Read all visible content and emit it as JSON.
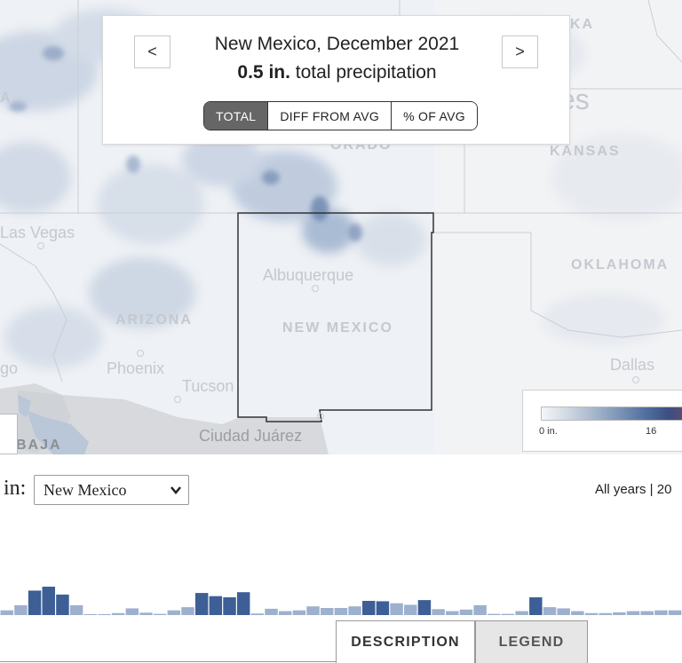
{
  "header": {
    "title": "New Mexico, December 2021",
    "total_value": "0.5 in.",
    "total_suffix": " total precipitation",
    "prev_label": "<",
    "next_label": ">",
    "toggle": [
      {
        "label": "TOTAL",
        "active": true
      },
      {
        "label": "DIFF FROM AVG",
        "active": false
      },
      {
        "label": "% OF AVG",
        "active": false
      }
    ]
  },
  "map": {
    "state_labels": [
      "KANSAS",
      "OKLAHOMA",
      "ARIZONA",
      "NEW MEXICO",
      "BAJA",
      "KA",
      "es",
      "ORADO"
    ],
    "city_labels": [
      "Las Vegas",
      "Albuquerque",
      "Phoenix",
      "Tucson",
      "Dallas",
      "Ciudad Juárez",
      "go",
      "A"
    ],
    "scale": {
      "min_label": "0 in.",
      "mid_label": "16"
    }
  },
  "controls": {
    "in_label": "in:",
    "state_select": "New Mexico",
    "years_label": "All years |  20"
  },
  "histogram": {
    "values": [
      0.12,
      0.25,
      0.62,
      0.72,
      0.52,
      0.25,
      0.02,
      0.02,
      0.05,
      0.17,
      0.06,
      0.03,
      0.12,
      0.2,
      0.56,
      0.48,
      0.45,
      0.58,
      0.04,
      0.16,
      0.1,
      0.12,
      0.22,
      0.18,
      0.18,
      0.22,
      0.36,
      0.35,
      0.3,
      0.26,
      0.38,
      0.15,
      0.1,
      0.14,
      0.25,
      0.03,
      0.03,
      0.1,
      0.45,
      0.2,
      0.17,
      0.1,
      0.05,
      0.05,
      0.07,
      0.1,
      0.1,
      0.12,
      0.12
    ],
    "color_light": "#9db0ce",
    "color_dark": "#3d5f96"
  },
  "tabs": {
    "description": "DESCRIPTION",
    "legend": "LEGEND"
  }
}
